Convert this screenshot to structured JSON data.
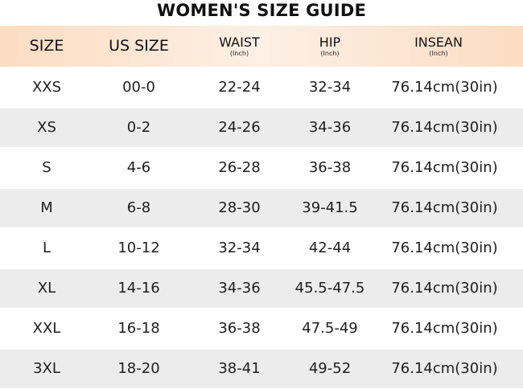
{
  "title": "WOMEN'S SIZE GUIDE",
  "columns": [
    {
      "label": "SIZE",
      "unit": ""
    },
    {
      "label": "US SIZE",
      "unit": ""
    },
    {
      "label": "WAIST",
      "unit": "(Inch)"
    },
    {
      "label": "HIP",
      "unit": "(Inch)"
    },
    {
      "label": "INSEAN",
      "unit": "(Inch)"
    }
  ],
  "rows": [
    [
      "XXS",
      "00-0",
      "22-24",
      "32-34",
      "76.14cm(30in)"
    ],
    [
      "XS",
      "0-2",
      "24-26",
      "34-36",
      "76.14cm(30in)"
    ],
    [
      "S",
      "4-6",
      "26-28",
      "36-38",
      "76.14cm(30in)"
    ],
    [
      "M",
      "6-8",
      "28-30",
      "39-41.5",
      "76.14cm(30in)"
    ],
    [
      "L",
      "10-12",
      "32-34",
      "42-44",
      "76.14cm(30in)"
    ],
    [
      "XL",
      "14-16",
      "34-36",
      "45.5-47.5",
      "76.14cm(30in)"
    ],
    [
      "XXL",
      "16-18",
      "36-38",
      "47.5-49",
      "76.14cm(30in)"
    ],
    [
      "3XL",
      "18-20",
      "38-41",
      "49-52",
      "76.14cm(30in)"
    ]
  ],
  "colors": {
    "header_gradient_edge": "#fcdcc2",
    "header_gradient_mid": "#fdf0e5",
    "row_alt": "#ececec",
    "row_base": "#ffffff"
  }
}
